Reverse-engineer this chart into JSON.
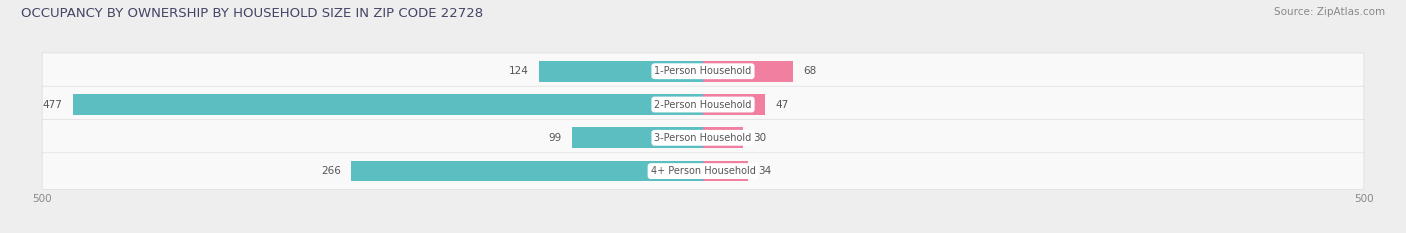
{
  "title": "OCCUPANCY BY OWNERSHIP BY HOUSEHOLD SIZE IN ZIP CODE 22728",
  "source": "Source: ZipAtlas.com",
  "categories": [
    "1-Person Household",
    "2-Person Household",
    "3-Person Household",
    "4+ Person Household"
  ],
  "owner_values": [
    124,
    477,
    99,
    266
  ],
  "renter_values": [
    68,
    47,
    30,
    34
  ],
  "owner_color": "#5bbfc2",
  "renter_color": "#f07fa0",
  "bg_color": "#eeeeee",
  "row_bg_color": "#f9f9f9",
  "row_border_color": "#dddddd",
  "bar_height": 0.62,
  "title_fontsize": 9.5,
  "source_fontsize": 7.5,
  "label_fontsize": 7.5,
  "tick_fontsize": 7.5,
  "legend_fontsize": 7.5,
  "category_fontsize": 7.0,
  "label_color": "#555555",
  "title_color": "#444466",
  "source_color": "#888888",
  "tick_color": "#888888"
}
